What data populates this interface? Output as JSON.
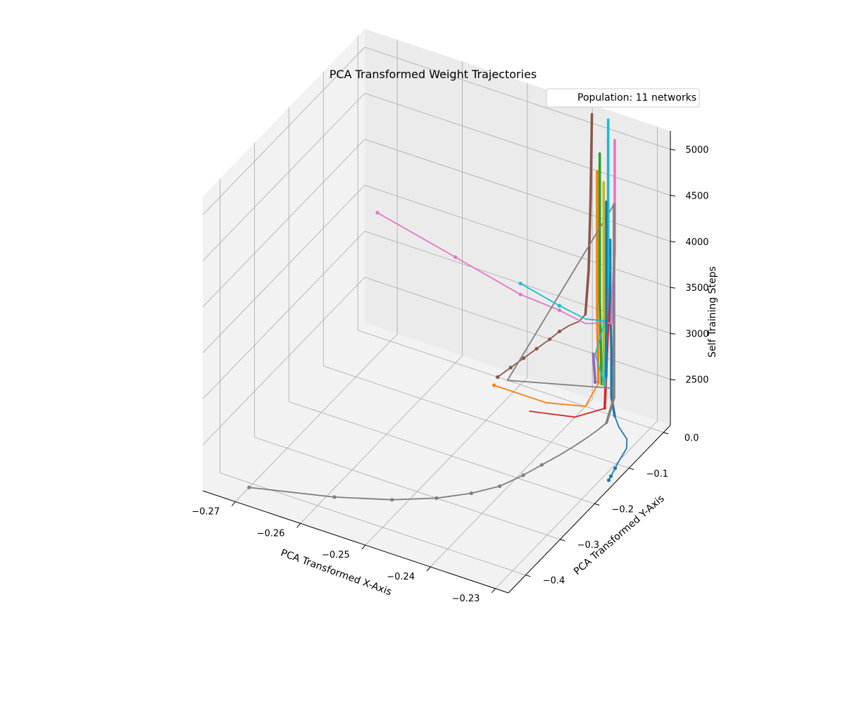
{
  "chart_data": {
    "type": "line3d",
    "title": "PCA Transformed Weight Trajectories",
    "xlabel": "PCA Transformed X-Axis",
    "ylabel": "PCA Transformed Y-Axis",
    "zlabel": "Self Training Steps",
    "xlim": [
      -0.275,
      -0.228
    ],
    "ylim": [
      -0.45,
      0.02
    ],
    "zlim": [
      2000,
      5200
    ],
    "xticks": [
      -0.27,
      -0.26,
      -0.25,
      -0.24,
      -0.23
    ],
    "xtick_labels": [
      "−0.27",
      "−0.26",
      "−0.25",
      "−0.24",
      "−0.23"
    ],
    "yticks": [
      0.0,
      -0.1,
      -0.2,
      -0.3,
      -0.4
    ],
    "ytick_labels": [
      "0.0",
      "−0.1",
      "−0.2",
      "−0.3",
      "−0.4"
    ],
    "zticks": [
      2500,
      3000,
      3500,
      4000,
      4500,
      5000
    ],
    "ztick_labels": [
      "2500",
      "3000",
      "3500",
      "4000",
      "4500",
      "5000"
    ],
    "grid": true,
    "legend": {
      "position": "top-right",
      "entries": [
        "Population: 11 networks"
      ]
    },
    "series": [
      {
        "color": "#1f77b4",
        "points": [
          [
            -0.229,
            -0.14,
            2000
          ],
          [
            -0.2292,
            -0.13,
            2000
          ],
          [
            -0.2296,
            -0.11,
            2000
          ],
          [
            -0.23,
            -0.09,
            2000
          ],
          [
            -0.2305,
            -0.06,
            2000
          ],
          [
            -0.2315,
            -0.04,
            2000
          ],
          [
            -0.2338,
            -0.02,
            2000
          ],
          [
            -0.2355,
            0.0,
            2000
          ],
          [
            -0.236,
            0.0,
            2200
          ],
          [
            -0.236,
            0.0,
            2700
          ],
          [
            -0.2362,
            0.0,
            3200
          ],
          [
            -0.2362,
            0.0,
            3900
          ]
        ],
        "markers": [
          [
            -0.229,
            -0.14,
            2000
          ],
          [
            -0.2292,
            -0.13,
            2000
          ],
          [
            -0.2296,
            -0.11,
            2000
          ]
        ]
      },
      {
        "color": "#ff7f0e",
        "points": [
          [
            -0.253,
            -0.02,
            2000
          ],
          [
            -0.245,
            -0.02,
            2000
          ],
          [
            -0.24,
            0.0,
            2000
          ],
          [
            -0.238,
            0.0,
            2300
          ],
          [
            -0.2382,
            0.0,
            3100
          ],
          [
            -0.2382,
            0.0,
            3900
          ],
          [
            -0.2382,
            0.0,
            4600
          ]
        ],
        "markers": [
          [
            -0.253,
            -0.02,
            2000
          ]
        ]
      },
      {
        "color": "#2ca02c",
        "points": [
          [
            -0.2375,
            0.0,
            2300
          ],
          [
            -0.2378,
            0.0,
            3200
          ],
          [
            -0.2378,
            0.0,
            4000
          ],
          [
            -0.2378,
            0.0,
            4800
          ]
        ],
        "markers": []
      },
      {
        "color": "#d62728",
        "points": [
          [
            -0.246,
            -0.05,
            2000
          ],
          [
            -0.24,
            -0.03,
            2000
          ],
          [
            -0.2365,
            -0.01,
            2100
          ],
          [
            -0.2365,
            0.0,
            3000
          ],
          [
            -0.2365,
            0.0,
            4200
          ],
          [
            -0.2365,
            0.0,
            5000
          ]
        ],
        "markers": []
      },
      {
        "color": "#9467bd",
        "points": [
          [
            -0.2385,
            0.0,
            2300
          ],
          [
            -0.2388,
            0.0,
            2600
          ],
          [
            -0.2385,
            0.0,
            2300
          ]
        ],
        "markers": [
          [
            -0.2385,
            0.0,
            2300
          ]
        ]
      },
      {
        "color": "#8c564b",
        "points": [
          [
            -0.2535,
            0.0,
            2000
          ],
          [
            -0.2515,
            0.0,
            2150
          ],
          [
            -0.2495,
            0.0,
            2300
          ],
          [
            -0.2475,
            0.0,
            2450
          ],
          [
            -0.2455,
            0.0,
            2600
          ],
          [
            -0.244,
            0.0,
            2720
          ],
          [
            -0.2425,
            0.0,
            2820
          ],
          [
            -0.241,
            0.0,
            2900
          ],
          [
            -0.24,
            0.0,
            3000
          ],
          [
            -0.2395,
            0.0,
            3500
          ],
          [
            -0.2392,
            0.0,
            4300
          ],
          [
            -0.239,
            0.0,
            5200
          ]
        ],
        "markers": [
          [
            -0.2535,
            0.0,
            2000
          ],
          [
            -0.2515,
            0.0,
            2150
          ],
          [
            -0.2495,
            0.0,
            2300
          ],
          [
            -0.2475,
            0.0,
            2450
          ],
          [
            -0.2455,
            0.0,
            2600
          ],
          [
            -0.244,
            0.0,
            2720
          ]
        ]
      },
      {
        "color": "#e377c2",
        "points": [
          [
            -0.272,
            0.0,
            3350
          ],
          [
            -0.26,
            0.0,
            3150
          ],
          [
            -0.25,
            0.0,
            2980
          ],
          [
            -0.244,
            0.0,
            2950
          ],
          [
            -0.24,
            0.0,
            2900
          ],
          [
            -0.236,
            0.0,
            3000
          ],
          [
            -0.2355,
            0.0,
            3800
          ],
          [
            -0.2355,
            0.0,
            4600
          ],
          [
            -0.2355,
            0.0,
            5000
          ]
        ],
        "markers": [
          [
            -0.272,
            0.0,
            3350
          ],
          [
            -0.26,
            0.0,
            3150
          ],
          [
            -0.25,
            0.0,
            2980
          ],
          [
            -0.244,
            0.0,
            2950
          ]
        ]
      },
      {
        "color": "#7f7f7f",
        "points": [
          [
            -0.27,
            -0.41,
            2000
          ],
          [
            -0.259,
            -0.37,
            2000
          ],
          [
            -0.252,
            -0.335,
            2000
          ],
          [
            -0.247,
            -0.3,
            2000
          ],
          [
            -0.2435,
            -0.265,
            2000
          ],
          [
            -0.241,
            -0.23,
            2000
          ],
          [
            -0.2395,
            -0.19,
            2000
          ],
          [
            -0.2385,
            -0.155,
            2000
          ],
          [
            -0.2375,
            -0.12,
            2000
          ],
          [
            -0.2368,
            -0.09,
            2000
          ],
          [
            -0.2362,
            -0.06,
            2000
          ],
          [
            -0.2359,
            -0.04,
            2000
          ],
          [
            -0.2357,
            -0.02,
            2000
          ],
          [
            -0.2356,
            0.0,
            2200
          ],
          [
            -0.2356,
            0.0,
            2900
          ],
          [
            -0.2356,
            0.0,
            3600
          ],
          [
            -0.2356,
            0.0,
            4300
          ],
          [
            -0.252,
            0.0,
            2000
          ],
          [
            -0.2356,
            0.0,
            2300
          ]
        ],
        "markers": [
          [
            -0.27,
            -0.41,
            2000
          ],
          [
            -0.259,
            -0.37,
            2000
          ],
          [
            -0.252,
            -0.335,
            2000
          ],
          [
            -0.247,
            -0.3,
            2000
          ],
          [
            -0.2435,
            -0.265,
            2000
          ],
          [
            -0.241,
            -0.23,
            2000
          ],
          [
            -0.2395,
            -0.19,
            2000
          ],
          [
            -0.2385,
            -0.155,
            2000
          ]
        ]
      },
      {
        "color": "#bcbd22",
        "points": [
          [
            -0.2372,
            0.0,
            2300
          ],
          [
            -0.2372,
            0.0,
            3500
          ],
          [
            -0.2372,
            0.0,
            4500
          ]
        ],
        "markers": []
      },
      {
        "color": "#17becf",
        "points": [
          [
            -0.25,
            0.0,
            3100
          ],
          [
            -0.244,
            0.0,
            3000
          ],
          [
            -0.24,
            0.0,
            2950
          ],
          [
            -0.237,
            0.0,
            3000
          ],
          [
            -0.2385,
            0.0,
            2600
          ],
          [
            -0.237,
            0.0,
            2300
          ],
          [
            -0.2365,
            0.0,
            3600
          ],
          [
            -0.2365,
            0.0,
            4500
          ],
          [
            -0.2365,
            0.0,
            5200
          ]
        ],
        "markers": [
          [
            -0.25,
            0.0,
            3100
          ],
          [
            -0.244,
            0.0,
            3000
          ]
        ]
      },
      {
        "color": "#1f77b4",
        "points": [
          [
            -0.2368,
            0.0,
            2400
          ],
          [
            -0.2368,
            0.0,
            3300
          ],
          [
            -0.2368,
            0.0,
            4300
          ]
        ],
        "markers": []
      }
    ]
  }
}
